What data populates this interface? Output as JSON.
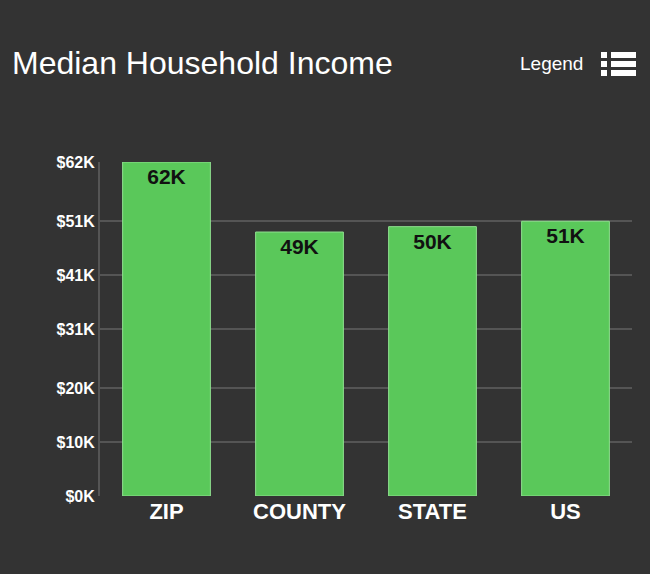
{
  "chart_data": {
    "type": "bar",
    "title": "Median Household Income",
    "annotations": [
      "Legend"
    ],
    "categories": [
      "ZIP",
      "COUNTY",
      "STATE",
      "US"
    ],
    "values": [
      62000,
      49000,
      50000,
      51000
    ],
    "value_labels": [
      "62K",
      "49K",
      "50K",
      "51K"
    ],
    "color": "#5ac85a",
    "ylim": [
      0,
      62000
    ],
    "yticks": [
      {
        "value": 0,
        "label": "$0K"
      },
      {
        "value": 10000,
        "label": "$10K"
      },
      {
        "value": 20000,
        "label": "$20K"
      },
      {
        "value": 31000,
        "label": "$31K"
      },
      {
        "value": 41000,
        "label": "$41K"
      },
      {
        "value": 51000,
        "label": "$51K"
      },
      {
        "value": 62000,
        "label": "$62K"
      }
    ],
    "grid": true,
    "data_labels": true
  }
}
